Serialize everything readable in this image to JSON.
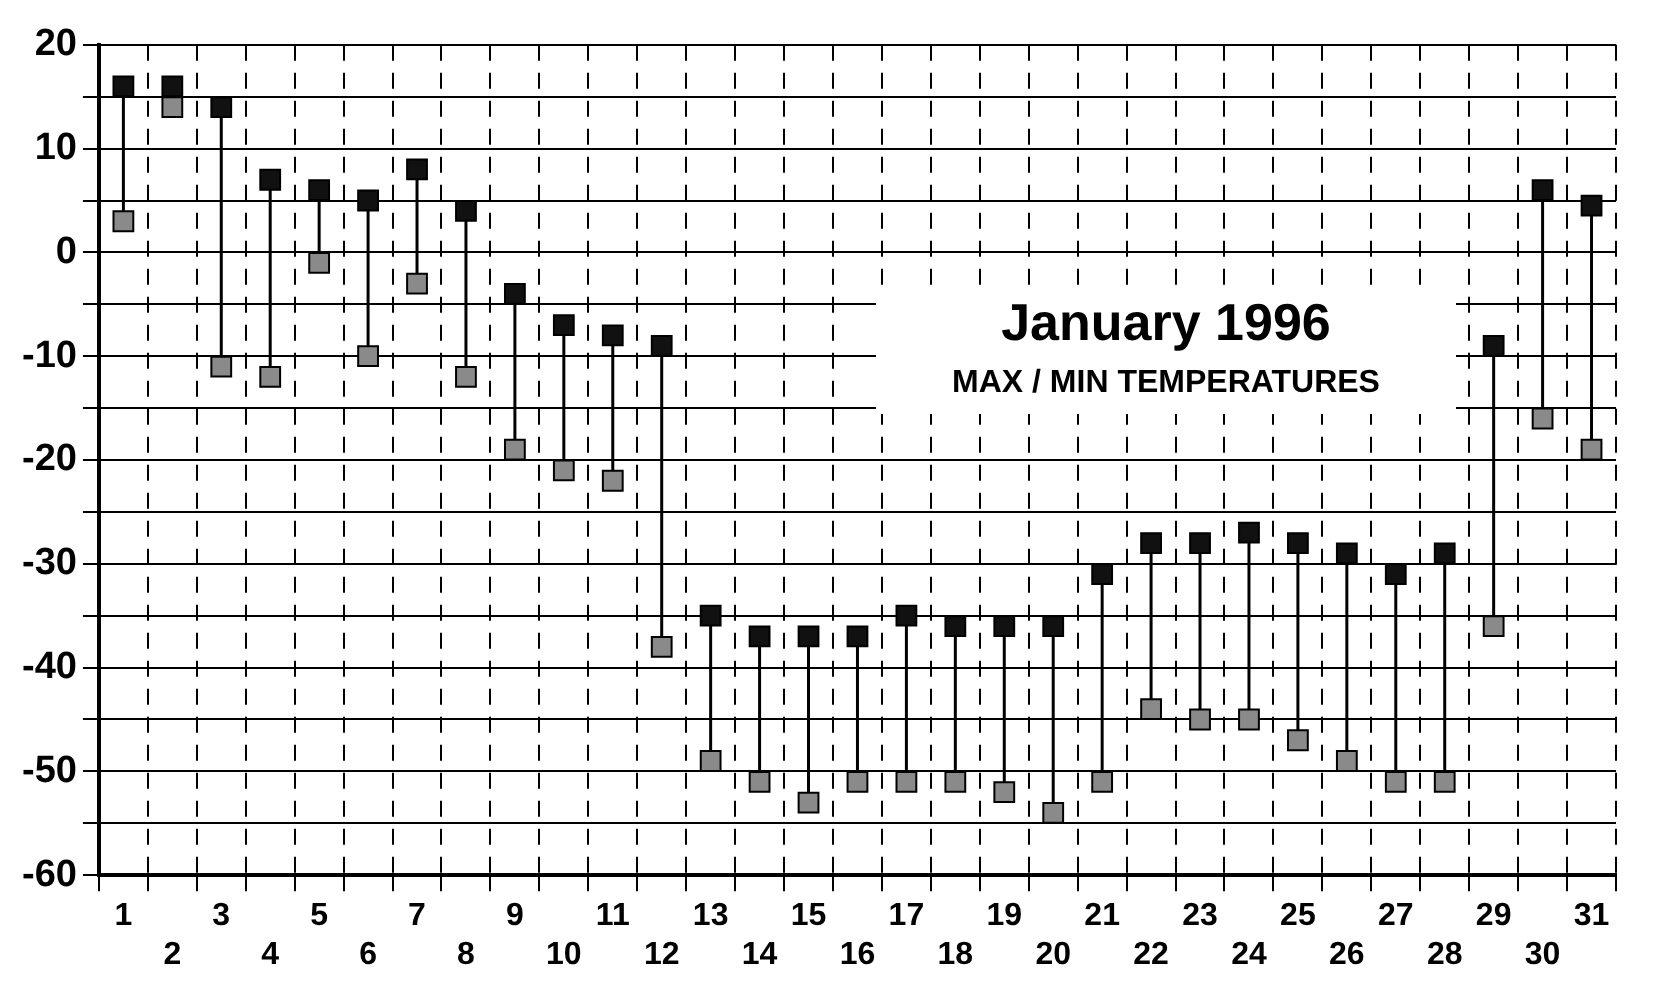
{
  "chart_data": {
    "type": "scatter",
    "title": "January 1996",
    "subtitle": "MAX / MIN TEMPERATURES",
    "categories": [
      "1",
      "2",
      "3",
      "4",
      "5",
      "6",
      "7",
      "8",
      "9",
      "10",
      "11",
      "12",
      "13",
      "14",
      "15",
      "16",
      "17",
      "18",
      "19",
      "20",
      "21",
      "22",
      "23",
      "24",
      "25",
      "26",
      "27",
      "28",
      "29",
      "30",
      "31"
    ],
    "series": [
      {
        "color": "#111111",
        "values": [
          16,
          16,
          14,
          7,
          6,
          5,
          8,
          4,
          -4,
          -7,
          -8,
          -9,
          -35,
          -37,
          -37,
          -37,
          -35,
          -36,
          -36,
          -36,
          -31,
          -28,
          -28,
          -27,
          -28,
          -29,
          -31,
          -29,
          -9,
          6,
          4.5
        ]
      },
      {
        "color": "#8a8a8a",
        "values": [
          3,
          14,
          -11,
          -12,
          -1,
          -10,
          -3,
          -12,
          -19,
          -21,
          -22,
          -38,
          -49,
          -51,
          -53,
          -51,
          -51,
          -51,
          -52,
          -54,
          -51,
          -44,
          -45,
          -45,
          -47,
          -49,
          -51,
          -51,
          -36,
          -16,
          -19
        ]
      }
    ],
    "ylim": [
      -60,
      20
    ],
    "yticks": [
      -60,
      {
        "value": -55,
        "label": null
      },
      -50,
      {
        "value": -45,
        "label": null
      },
      -40,
      {
        "value": -35,
        "label": null
      },
      -30,
      {
        "value": -25,
        "label": null
      },
      -20,
      {
        "value": -15,
        "label": null
      },
      -10,
      {
        "value": -5,
        "label": null
      },
      0,
      {
        "value": 5,
        "label": null
      },
      10,
      {
        "value": 15,
        "label": null
      },
      20
    ],
    "grid": true,
    "legend": false,
    "marker": "square"
  }
}
